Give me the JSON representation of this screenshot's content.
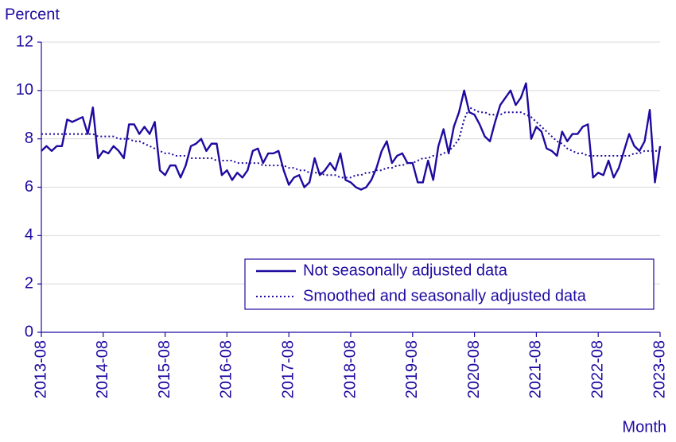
{
  "chart_data": {
    "type": "line",
    "y_label": "Percent",
    "x_label": "Month",
    "categories": [
      "2013-08",
      null,
      null,
      null,
      null,
      null,
      null,
      null,
      null,
      null,
      null,
      null,
      "2014-08",
      null,
      null,
      null,
      null,
      null,
      null,
      null,
      null,
      null,
      null,
      null,
      "2015-08",
      null,
      null,
      null,
      null,
      null,
      null,
      null,
      null,
      null,
      null,
      null,
      "2016-08",
      null,
      null,
      null,
      null,
      null,
      null,
      null,
      null,
      null,
      null,
      null,
      "2017-08",
      null,
      null,
      null,
      null,
      null,
      null,
      null,
      null,
      null,
      null,
      null,
      "2018-08",
      null,
      null,
      null,
      null,
      null,
      null,
      null,
      null,
      null,
      null,
      null,
      "2019-08",
      null,
      null,
      null,
      null,
      null,
      null,
      null,
      null,
      null,
      null,
      null,
      "2020-08",
      null,
      null,
      null,
      null,
      null,
      null,
      null,
      null,
      null,
      null,
      null,
      "2021-08",
      null,
      null,
      null,
      null,
      null,
      null,
      null,
      null,
      null,
      null,
      null,
      "2022-08",
      null,
      null,
      null,
      null,
      null,
      null,
      null,
      null,
      null,
      null,
      null,
      "2023-08"
    ],
    "series": [
      {
        "name": "Not seasonally adjusted data",
        "color": "#1e0aa0",
        "style": "solid",
        "values": [
          7.5,
          7.7,
          7.5,
          7.7,
          7.7,
          8.8,
          8.7,
          8.8,
          8.9,
          8.2,
          9.3,
          7.2,
          7.5,
          7.4,
          7.7,
          7.5,
          7.2,
          8.6,
          8.6,
          8.2,
          8.5,
          8.2,
          8.7,
          6.7,
          6.5,
          6.9,
          6.9,
          6.4,
          6.9,
          7.7,
          7.8,
          8.0,
          7.5,
          7.8,
          7.8,
          6.5,
          6.7,
          6.3,
          6.6,
          6.4,
          6.7,
          7.5,
          7.6,
          7.0,
          7.4,
          7.4,
          7.5,
          6.7,
          6.1,
          6.4,
          6.5,
          6.0,
          6.2,
          7.2,
          6.5,
          6.7,
          7.0,
          6.7,
          7.4,
          6.3,
          6.2,
          6.0,
          5.9,
          6.0,
          6.3,
          6.8,
          7.5,
          7.9,
          7.0,
          7.3,
          7.4,
          7.0,
          7.0,
          6.2,
          6.2,
          7.1,
          6.3,
          7.7,
          8.4,
          7.4,
          8.5,
          9.1,
          10.0,
          9.1,
          9.0,
          8.6,
          8.1,
          7.9,
          8.7,
          9.4,
          9.7,
          10.0,
          9.4,
          9.7,
          10.3,
          8.0,
          8.5,
          8.3,
          7.6,
          7.5,
          7.3,
          8.3,
          7.9,
          8.2,
          8.2,
          8.5,
          8.6,
          6.4,
          6.6,
          6.5,
          7.1,
          6.4,
          6.8,
          7.5,
          8.2,
          7.7,
          7.5,
          7.9,
          9.2,
          6.2,
          7.7
        ]
      },
      {
        "name": "Smoothed and seasonally adjusted data",
        "color": "#1e0aa0",
        "style": "dotted",
        "values": [
          8.2,
          8.2,
          8.2,
          8.2,
          8.2,
          8.2,
          8.2,
          8.2,
          8.2,
          8.2,
          8.2,
          8.1,
          8.1,
          8.1,
          8.1,
          8.0,
          8.0,
          8.0,
          7.9,
          7.9,
          7.8,
          7.7,
          7.6,
          7.5,
          7.4,
          7.4,
          7.3,
          7.3,
          7.3,
          7.2,
          7.2,
          7.2,
          7.2,
          7.2,
          7.1,
          7.1,
          7.1,
          7.1,
          7.0,
          7.0,
          7.0,
          7.0,
          7.0,
          6.9,
          6.9,
          6.9,
          6.9,
          6.9,
          6.8,
          6.8,
          6.7,
          6.7,
          6.6,
          6.6,
          6.6,
          6.5,
          6.5,
          6.5,
          6.4,
          6.4,
          6.4,
          6.5,
          6.5,
          6.6,
          6.6,
          6.7,
          6.7,
          6.8,
          6.8,
          6.9,
          6.9,
          7.0,
          7.0,
          7.1,
          7.2,
          7.2,
          7.3,
          7.3,
          7.4,
          7.5,
          7.7,
          8.0,
          8.8,
          9.3,
          9.2,
          9.1,
          9.1,
          9.0,
          9.0,
          9.0,
          9.1,
          9.1,
          9.1,
          9.1,
          9.0,
          8.9,
          8.7,
          8.5,
          8.3,
          8.1,
          7.9,
          7.8,
          7.6,
          7.5,
          7.4,
          7.4,
          7.3,
          7.3,
          7.3,
          7.3,
          7.3,
          7.3,
          7.3,
          7.3,
          7.3,
          7.4,
          7.4,
          7.5,
          7.5,
          7.5,
          7.5
        ]
      }
    ],
    "ylim": [
      0,
      12
    ],
    "yticks": [
      0,
      2,
      4,
      6,
      8,
      10,
      12
    ],
    "grid": true,
    "legend": "lower right"
  }
}
